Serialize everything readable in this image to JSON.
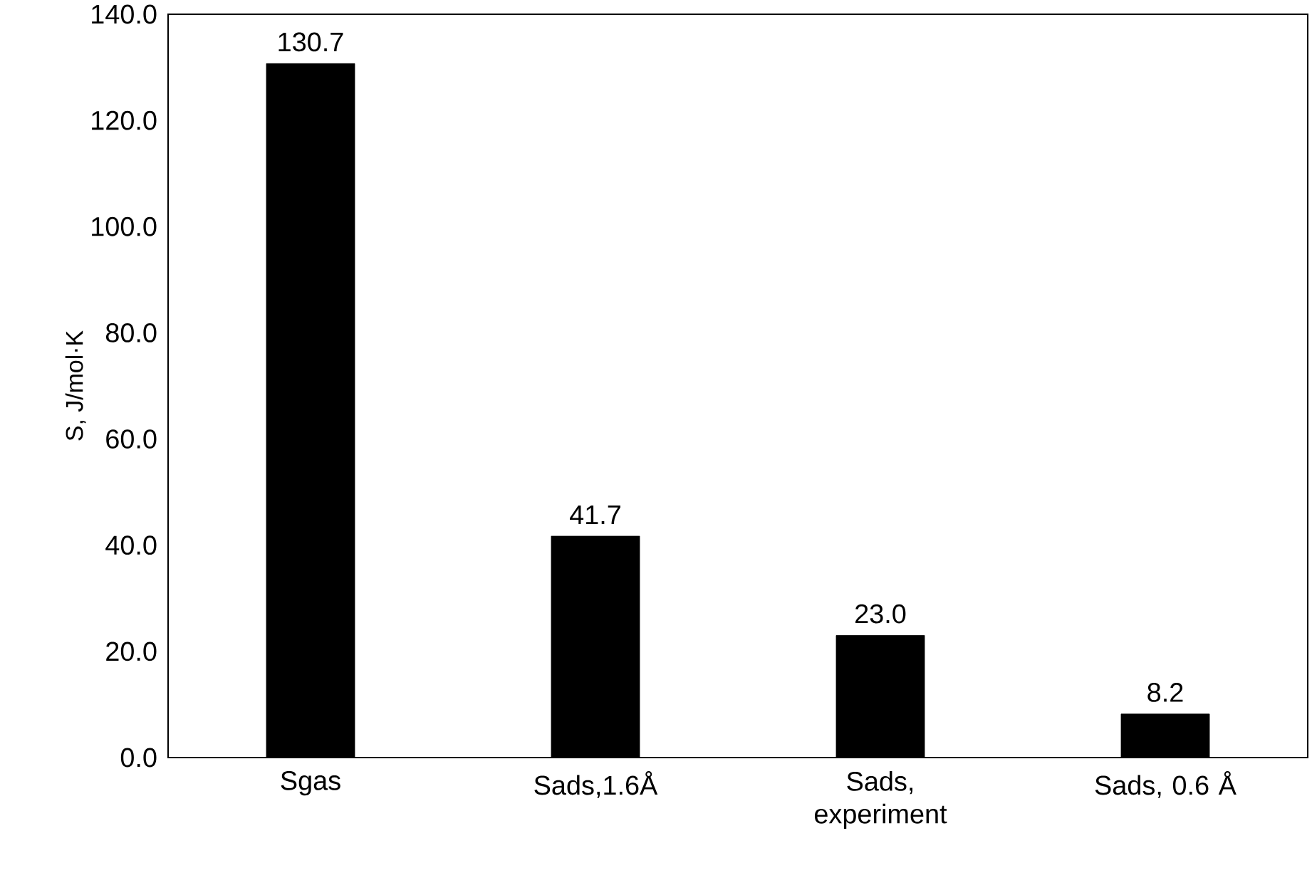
{
  "chart_data": {
    "type": "bar",
    "ylabel": "S, J/mol·K",
    "categories": [
      "Sgas",
      "Sads,1.6Å",
      "Sads, experiment",
      "Sads, 0.6 Å"
    ],
    "values": [
      130.7,
      41.7,
      23.0,
      8.2
    ],
    "value_labels": [
      "130.7",
      "41.7",
      "23.0",
      "8.2"
    ],
    "color": "#000000",
    "ylim": [
      0,
      140
    ],
    "grid": false,
    "yticks": [
      {
        "value": 0,
        "label": "0.0"
      },
      {
        "value": 20,
        "label": "20.0"
      },
      {
        "value": 40,
        "label": "40.0"
      },
      {
        "value": 60,
        "label": "60.0"
      },
      {
        "value": 80,
        "label": "80.0"
      },
      {
        "value": 100,
        "label": "100.0"
      },
      {
        "value": 120,
        "label": "120.0"
      },
      {
        "value": 140,
        "label": "140.0"
      }
    ],
    "relative": false
  }
}
